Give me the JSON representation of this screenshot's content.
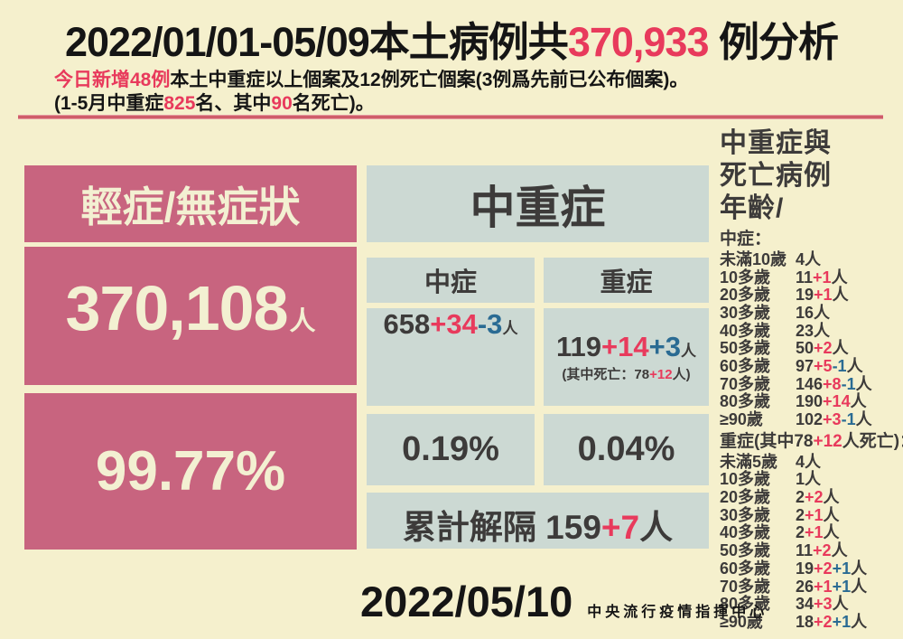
{
  "header": {
    "title_pre": "2022/01/01-05/09本土病例共",
    "title_total": "370,933",
    "title_post": " 例分析",
    "subtitle1": [
      {
        "t": "今日新增48例",
        "c": "red"
      },
      {
        "t": "本土中重症以上個案及12例死亡個案(3例爲先前已公布個案)。",
        "c": "black"
      }
    ],
    "subtitle2": [
      {
        "t": "(1-5月中重症",
        "c": "black"
      },
      {
        "t": "825",
        "c": "red"
      },
      {
        "t": "名、其中",
        "c": "black"
      },
      {
        "t": "90",
        "c": "red"
      },
      {
        "t": "名死亡)。",
        "c": "black"
      }
    ]
  },
  "mild": {
    "title": "輕症/無症狀",
    "count": "370,108",
    "unit": "人",
    "percent": "99.77%"
  },
  "ms": {
    "title": "中重症",
    "moderate": {
      "label": "中症",
      "value": [
        {
          "t": "658",
          "c": "dark"
        },
        {
          "t": "+34",
          "c": "red"
        },
        {
          "t": "-3",
          "c": "blue"
        },
        {
          "t": "人",
          "c": "dark sm"
        }
      ],
      "percent": "0.19%"
    },
    "severe": {
      "label": "重症",
      "value": [
        {
          "t": "119",
          "c": "dark"
        },
        {
          "t": "+14",
          "c": "red"
        },
        {
          "t": "+3",
          "c": "blue"
        },
        {
          "t": "人",
          "c": "dark sm"
        }
      ],
      "note": [
        {
          "t": "(其中死亡：78",
          "c": "dark"
        },
        {
          "t": "+12",
          "c": "red"
        },
        {
          "t": "人)",
          "c": "dark"
        }
      ],
      "percent": "0.04%"
    },
    "released": [
      {
        "t": "累計解隔 159",
        "c": "dark"
      },
      {
        "t": "+7",
        "c": "red"
      },
      {
        "t": "人",
        "c": "dark"
      }
    ]
  },
  "sidebar": {
    "title_lines": [
      "中重症與",
      "死亡病例",
      "年齡/"
    ],
    "moderate_label": "中症：",
    "moderate_rows": [
      {
        "label": "未滿10歲",
        "segs": [
          {
            "t": "4人",
            "c": "dark"
          }
        ]
      },
      {
        "label": "10多歲",
        "segs": [
          {
            "t": "11",
            "c": "dark"
          },
          {
            "t": "+1",
            "c": "red"
          },
          {
            "t": "人",
            "c": "dark"
          }
        ]
      },
      {
        "label": "20多歲",
        "segs": [
          {
            "t": "19",
            "c": "dark"
          },
          {
            "t": "+1",
            "c": "red"
          },
          {
            "t": "人",
            "c": "dark"
          }
        ]
      },
      {
        "label": "30多歲",
        "segs": [
          {
            "t": "16人",
            "c": "dark"
          }
        ]
      },
      {
        "label": "40多歲",
        "segs": [
          {
            "t": "23人",
            "c": "dark"
          }
        ]
      },
      {
        "label": "50多歲",
        "segs": [
          {
            "t": "50",
            "c": "dark"
          },
          {
            "t": "+2",
            "c": "red"
          },
          {
            "t": "人",
            "c": "dark"
          }
        ]
      },
      {
        "label": "60多歲",
        "segs": [
          {
            "t": "97",
            "c": "dark"
          },
          {
            "t": "+5",
            "c": "red"
          },
          {
            "t": "-1",
            "c": "blue"
          },
          {
            "t": "人",
            "c": "dark"
          }
        ]
      },
      {
        "label": "70多歲",
        "segs": [
          {
            "t": "146",
            "c": "dark"
          },
          {
            "t": "+8",
            "c": "red"
          },
          {
            "t": "-1",
            "c": "blue"
          },
          {
            "t": "人",
            "c": "dark"
          }
        ]
      },
      {
        "label": "80多歲",
        "segs": [
          {
            "t": "190",
            "c": "dark"
          },
          {
            "t": "+14",
            "c": "red"
          },
          {
            "t": "人",
            "c": "dark"
          }
        ]
      },
      {
        "label": "≥90歲",
        "segs": [
          {
            "t": "102",
            "c": "dark"
          },
          {
            "t": "+3",
            "c": "red"
          },
          {
            "t": "-1",
            "c": "blue"
          },
          {
            "t": "人",
            "c": "dark"
          }
        ]
      }
    ],
    "severe_label": [
      {
        "t": "重症(其中78",
        "c": "dark"
      },
      {
        "t": "+12",
        "c": "red"
      },
      {
        "t": "人死亡)：",
        "c": "dark"
      }
    ],
    "severe_rows": [
      {
        "label": "未滿5歲",
        "segs": [
          {
            "t": "4人",
            "c": "dark"
          }
        ]
      },
      {
        "label": "10多歲",
        "segs": [
          {
            "t": "1人",
            "c": "dark"
          }
        ]
      },
      {
        "label": "20多歲",
        "segs": [
          {
            "t": "2",
            "c": "dark"
          },
          {
            "t": "+2",
            "c": "red"
          },
          {
            "t": "人",
            "c": "dark"
          }
        ]
      },
      {
        "label": "30多歲",
        "segs": [
          {
            "t": "2",
            "c": "dark"
          },
          {
            "t": "+1",
            "c": "red"
          },
          {
            "t": "人",
            "c": "dark"
          }
        ]
      },
      {
        "label": "40多歲",
        "segs": [
          {
            "t": "2",
            "c": "dark"
          },
          {
            "t": "+1",
            "c": "red"
          },
          {
            "t": "人",
            "c": "dark"
          }
        ]
      },
      {
        "label": "50多歲",
        "segs": [
          {
            "t": "11",
            "c": "dark"
          },
          {
            "t": "+2",
            "c": "red"
          },
          {
            "t": "人",
            "c": "dark"
          }
        ]
      },
      {
        "label": "60多歲",
        "segs": [
          {
            "t": "19",
            "c": "dark"
          },
          {
            "t": "+2",
            "c": "red"
          },
          {
            "t": "+1",
            "c": "blue"
          },
          {
            "t": "人",
            "c": "dark"
          }
        ]
      },
      {
        "label": "70多歲",
        "segs": [
          {
            "t": "26",
            "c": "dark"
          },
          {
            "t": "+1",
            "c": "red"
          },
          {
            "t": "+1",
            "c": "blue"
          },
          {
            "t": "人",
            "c": "dark"
          }
        ]
      },
      {
        "label": "80多歲",
        "segs": [
          {
            "t": "34",
            "c": "dark"
          },
          {
            "t": "+3",
            "c": "red"
          },
          {
            "t": "人",
            "c": "dark"
          }
        ]
      },
      {
        "label": "≥90歲",
        "segs": [
          {
            "t": "18",
            "c": "dark"
          },
          {
            "t": "+2",
            "c": "red"
          },
          {
            "t": "+1",
            "c": "blue"
          },
          {
            "t": "人",
            "c": "dark"
          }
        ]
      }
    ]
  },
  "footer": {
    "date": "2022/05/10",
    "agency": "中央流行疫情指揮中心"
  },
  "colors": {
    "background": "#f5f0cd",
    "pink_panel": "#c8647f",
    "green_panel": "#ccd9d3",
    "accent_red": "#e83a5c",
    "accent_blue": "#2a6b93",
    "text_dark": "#3d3b3a",
    "cream_text": "#f3f0d2",
    "rule": "#cf5d69"
  },
  "chart_data": {
    "type": "table",
    "title": "2022/01/01-05/09本土病例共370,933 例分析",
    "total_cases": 370933,
    "new_today_note": "今日新增48例本土中重症以上個案及12例死亡個案(3例爲先前已公布個案)。",
    "period_note": "(1-5月中重症825名、其中90名死亡)。",
    "groups": [
      {
        "name": "輕症/無症狀",
        "count": 370108,
        "percent": 99.77
      },
      {
        "name": "中症",
        "count": 658,
        "new": 34,
        "adjusted": -3,
        "percent": 0.19
      },
      {
        "name": "重症",
        "count": 119,
        "new": 14,
        "adjusted": 3,
        "percent": 0.04,
        "deaths": 78,
        "new_deaths": 12
      }
    ],
    "released_from_isolation": {
      "count": 159,
      "new": 7
    },
    "age_breakdown_moderate": [
      [
        "未滿10歲",
        "4"
      ],
      [
        "10多歲",
        "11+1"
      ],
      [
        "20多歲",
        "19+1"
      ],
      [
        "30多歲",
        "16"
      ],
      [
        "40多歲",
        "23"
      ],
      [
        "50多歲",
        "50+2"
      ],
      [
        "60多歲",
        "97+5-1"
      ],
      [
        "70多歲",
        "146+8-1"
      ],
      [
        "80多歲",
        "190+14"
      ],
      [
        "≥90歲",
        "102+3-1"
      ]
    ],
    "age_breakdown_severe": [
      [
        "未滿5歲",
        "4"
      ],
      [
        "10多歲",
        "1"
      ],
      [
        "20多歲",
        "2+2"
      ],
      [
        "30多歲",
        "2+1"
      ],
      [
        "40多歲",
        "2+1"
      ],
      [
        "50多歲",
        "11+2"
      ],
      [
        "60多歲",
        "19+2+1"
      ],
      [
        "70多歲",
        "26+1+1"
      ],
      [
        "80多歲",
        "34+3"
      ],
      [
        "≥90歲",
        "18+2+1"
      ]
    ]
  }
}
